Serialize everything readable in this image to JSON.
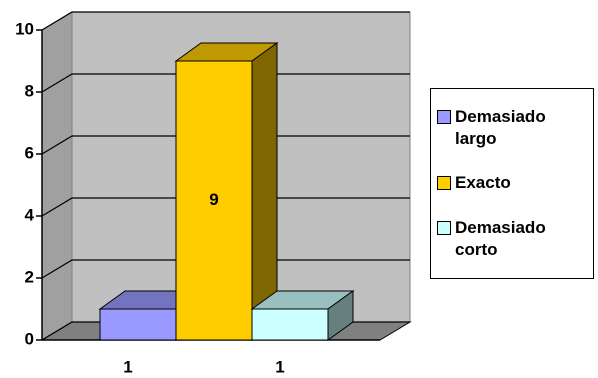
{
  "chart_data": {
    "type": "bar",
    "categories": [
      null
    ],
    "series": [
      {
        "name": "Demasiado largo",
        "color": "#9999ff",
        "values": [
          1
        ]
      },
      {
        "name": "Exacto",
        "color": "#ffcc00",
        "values": [
          9
        ]
      },
      {
        "name": "Demasiado corto",
        "color": "#ccffff",
        "values": [
          1
        ]
      }
    ],
    "ylim": [
      0,
      10
    ],
    "yticks": [
      0,
      2,
      4,
      6,
      8,
      10
    ],
    "grid": true,
    "legend": "right"
  }
}
